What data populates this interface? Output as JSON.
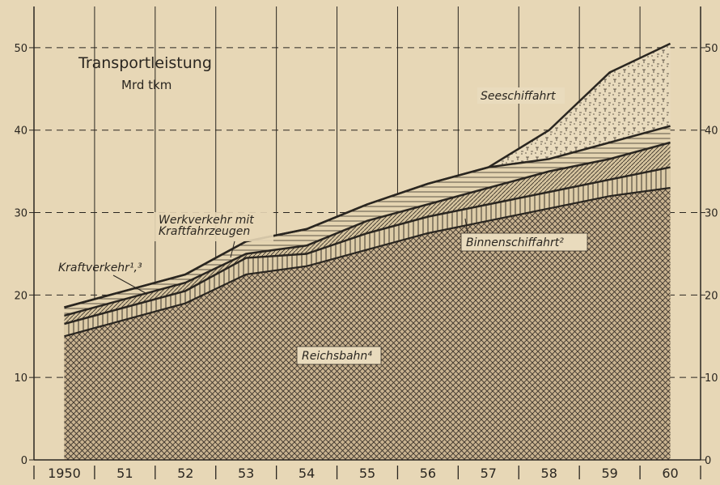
{
  "chart_data": {
    "type": "area",
    "title": "Transportleistung",
    "subtitle": "Mrd tkm",
    "categories": [
      "1950",
      "51",
      "52",
      "53",
      "54",
      "55",
      "56",
      "57",
      "58",
      "59",
      "60"
    ],
    "y_ticks": [
      0,
      10,
      20,
      30,
      40,
      50
    ],
    "ylim": [
      0,
      55
    ],
    "grid": true,
    "stacked": true,
    "series": [
      {
        "name": "Reichsbahn⁴",
        "values": [
          15,
          17,
          19,
          22.5,
          23.5,
          25.5,
          27.5,
          29,
          30.5,
          32,
          33
        ]
      },
      {
        "name": "Binnenschiffahrt²",
        "values": [
          16.5,
          18.5,
          20.5,
          24.5,
          25,
          27.5,
          29.5,
          31,
          32.5,
          34,
          35.5
        ]
      },
      {
        "name": "Werkverkehr mit Kraftfahrzeugen",
        "values": [
          17.5,
          19.5,
          21.5,
          25,
          26,
          29,
          31,
          33,
          35,
          36.5,
          38.5
        ]
      },
      {
        "name": "Kraftverkehr¹,³",
        "values": [
          18.5,
          20.5,
          22.5,
          26.5,
          28,
          31,
          33.5,
          35.5,
          36.5,
          38.5,
          40.5
        ]
      },
      {
        "name": "Seeschiffahrt",
        "values": [
          18.5,
          20.5,
          22.5,
          26.5,
          28,
          31,
          33.5,
          35.5,
          40,
          47,
          50.5
        ]
      }
    ]
  }
}
